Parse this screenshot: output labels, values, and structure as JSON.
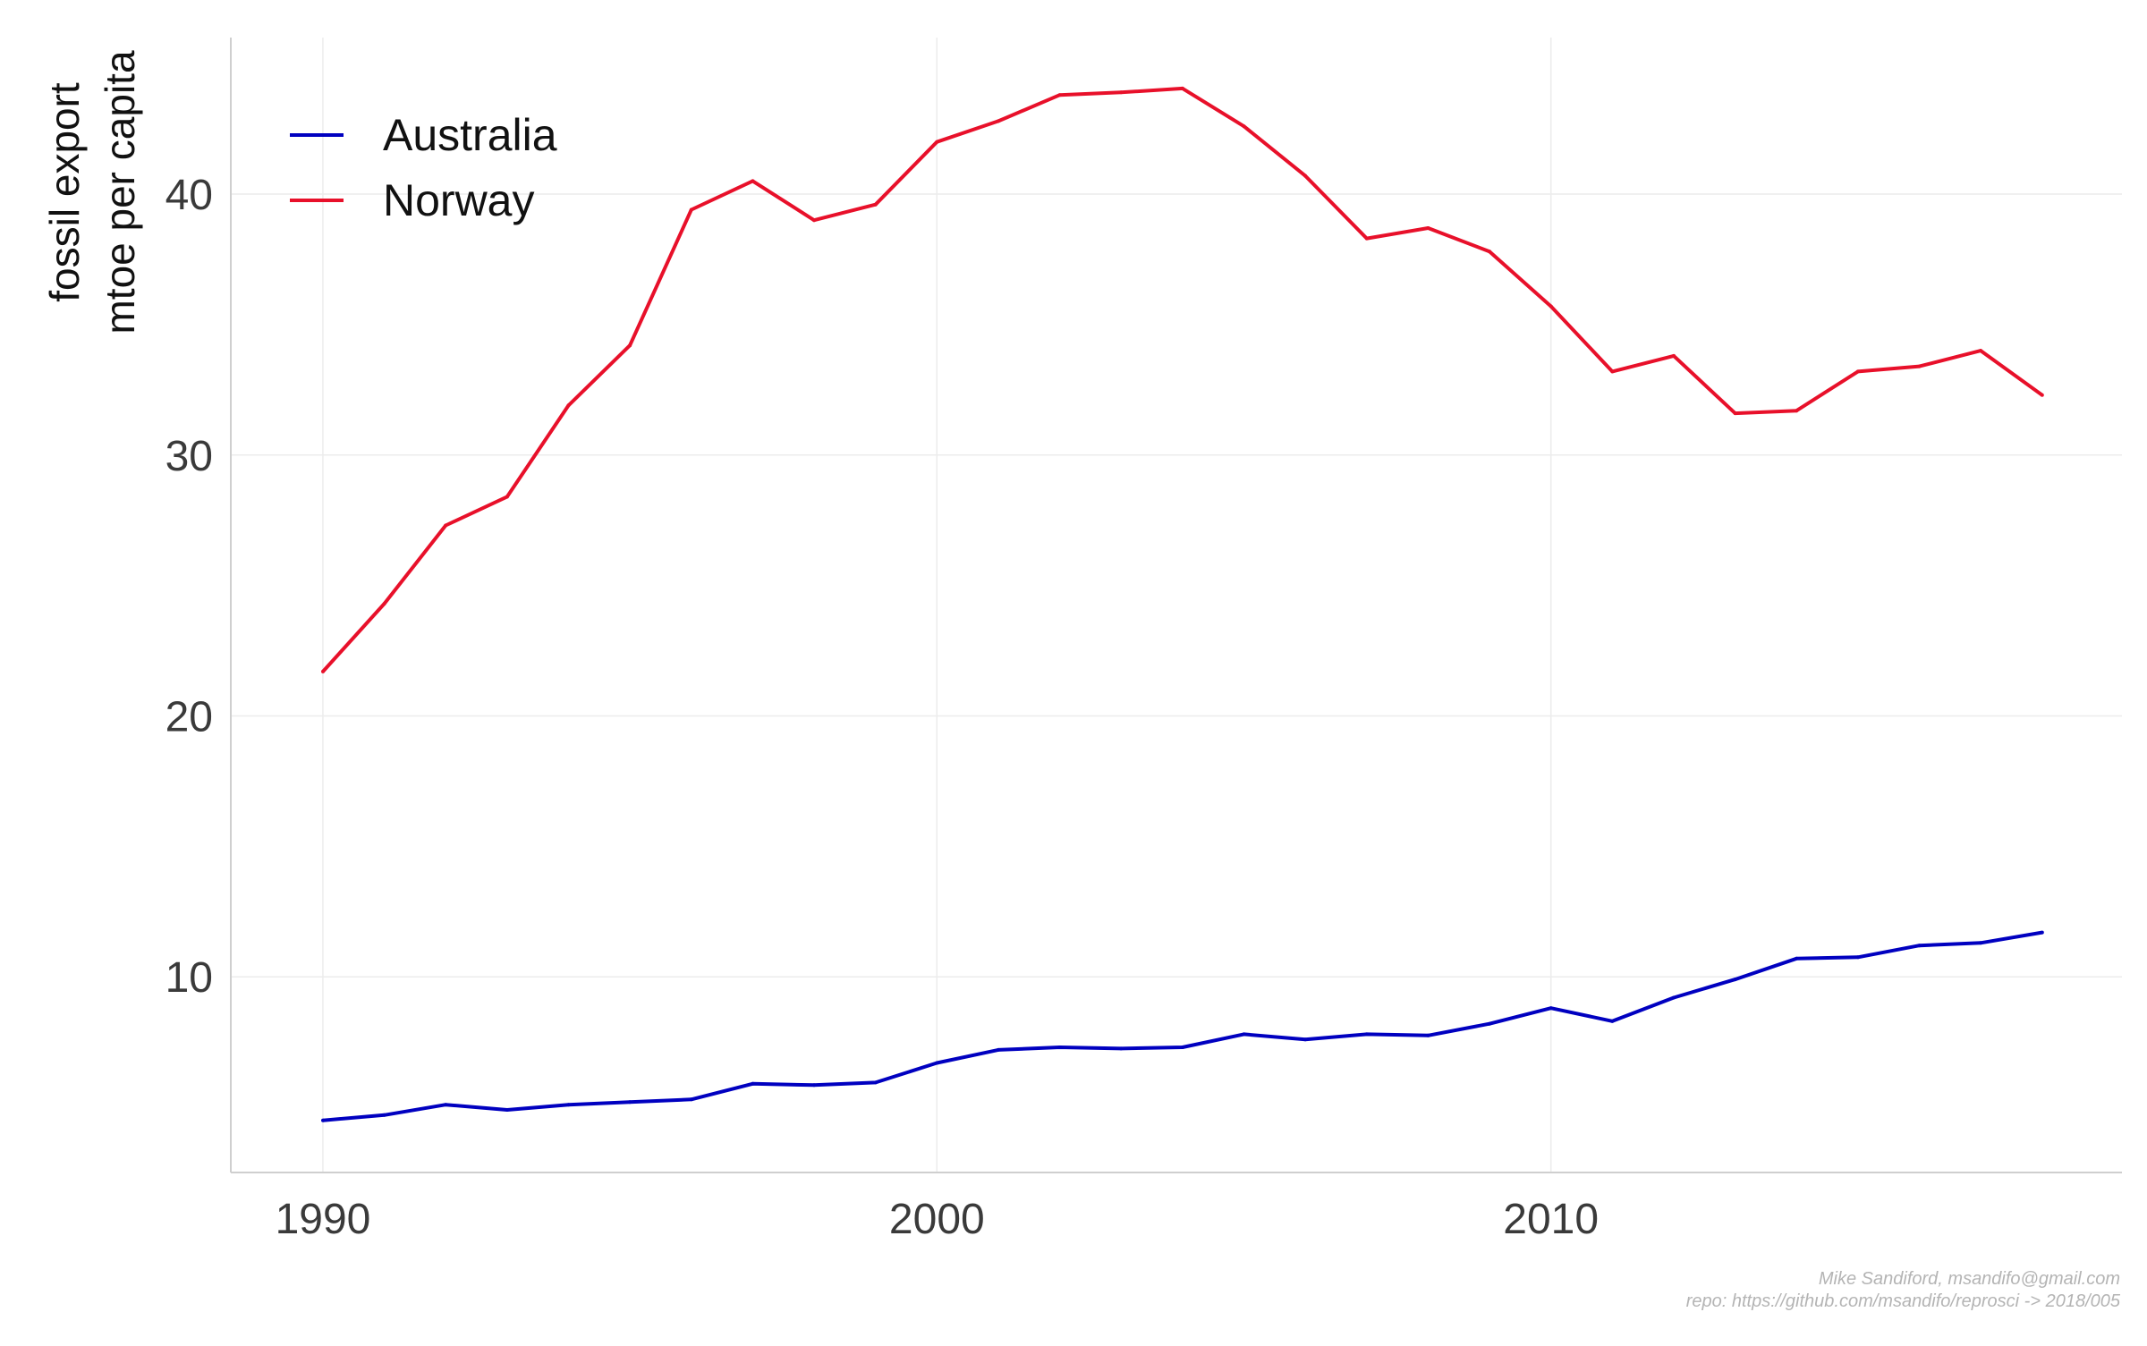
{
  "chart_data": {
    "type": "line",
    "title": "",
    "xlabel": "",
    "ylabel_lines": [
      "fossil export",
      "mtoe per capita"
    ],
    "xlim": [
      1988.5,
      2019.3
    ],
    "ylim": [
      2.5,
      46
    ],
    "x_ticks": [
      1990,
      2000,
      2010
    ],
    "y_ticks": [
      10,
      20,
      30,
      40
    ],
    "grid": true,
    "legend_position": "top-left",
    "x": [
      1990,
      1991,
      1992,
      1993,
      1994,
      1995,
      1996,
      1997,
      1998,
      1999,
      2000,
      2001,
      2002,
      2003,
      2004,
      2005,
      2006,
      2007,
      2008,
      2009,
      2010,
      2011,
      2012,
      2013,
      2014,
      2015,
      2016,
      2017,
      2018
    ],
    "series": [
      {
        "name": "Australia",
        "color": "#0000c0",
        "values": [
          4.5,
          4.7,
          5.1,
          4.9,
          5.1,
          5.2,
          5.3,
          5.9,
          5.85,
          5.95,
          6.7,
          7.2,
          7.3,
          7.25,
          7.3,
          7.8,
          7.6,
          7.8,
          7.75,
          8.2,
          8.8,
          8.3,
          9.2,
          9.9,
          10.7,
          10.75,
          11.2,
          11.3,
          11.7
        ]
      },
      {
        "name": "Norway",
        "color": "#e8102a",
        "values": [
          21.7,
          24.3,
          27.3,
          28.4,
          31.9,
          34.2,
          39.4,
          40.5,
          39.0,
          39.6,
          42.0,
          42.8,
          43.8,
          43.9,
          44.05,
          42.6,
          40.7,
          38.3,
          38.7,
          37.8,
          35.7,
          33.2,
          33.8,
          31.6,
          31.7,
          33.2,
          33.4,
          34.0,
          32.3
        ]
      }
    ]
  },
  "caption": {
    "line1": "Mike Sandiford, msandifo@gmail.com",
    "line2": "repo: https://github.com/msandifo/reprosci -> 2018/005"
  }
}
